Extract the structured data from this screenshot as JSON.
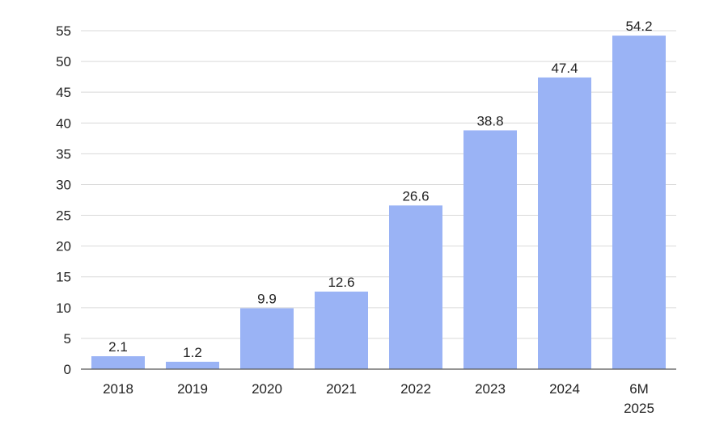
{
  "chart_data": {
    "type": "bar",
    "title": "",
    "xlabel": "",
    "ylabel": "",
    "categories": [
      [
        "2018"
      ],
      [
        "2019"
      ],
      [
        "2020"
      ],
      [
        "2021"
      ],
      [
        "2022"
      ],
      [
        "2023"
      ],
      [
        "2024"
      ],
      [
        "6M",
        "2025"
      ]
    ],
    "values": [
      2.1,
      1.2,
      9.9,
      12.6,
      26.6,
      38.8,
      47.4,
      54.2
    ],
    "value_labels": [
      "2.1",
      "1.2",
      "9.9",
      "12.6",
      "26.6",
      "38.8",
      "47.4",
      "54.2"
    ],
    "yticks": [
      "0",
      "5",
      "10",
      "15",
      "20",
      "25",
      "30",
      "35",
      "40",
      "45",
      "50",
      "55"
    ],
    "ylim": [
      0,
      55
    ],
    "grid": true,
    "legend": "none",
    "colors": {
      "bar": "#9ab3f5"
    }
  }
}
